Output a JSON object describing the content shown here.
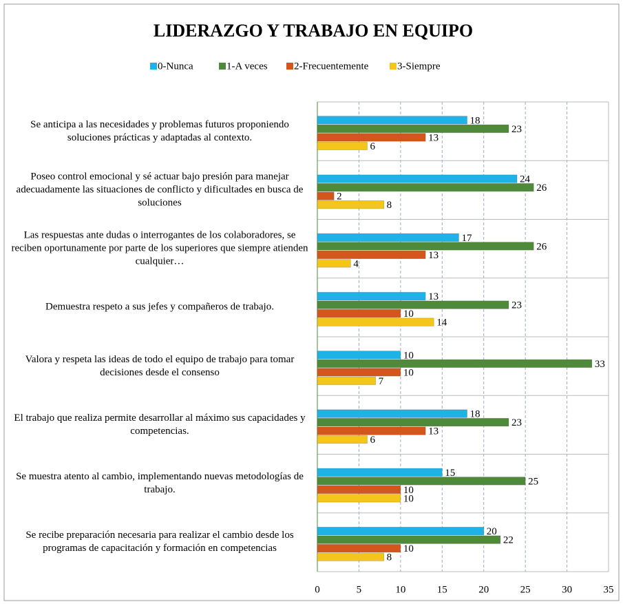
{
  "chart_data": {
    "type": "bar",
    "orientation": "horizontal",
    "title": "LIDERAZGO Y TRABAJO EN EQUIPO",
    "categories": [
      "Se anticipa a las necesidades y problemas futuros proponiendo soluciones prácticas y adaptadas al contexto.",
      "Poseo control emocional y sé actuar bajo presión para manejar adecuadamente las situaciones de conflicto y dificultades en busca de soluciones",
      "Las respuestas ante dudas o interrogantes de los colaboradores, se reciben oportunamente por parte de los superiores que siempre atienden cualquier…",
      "Demuestra respeto a sus jefes y compañeros de trabajo.",
      "Valora y respeta las ideas de todo el equipo de trabajo para tomar decisiones desde el consenso",
      "El trabajo que realiza permite desarrollar al máximo sus capacidades y competencias.",
      "Se muestra atento al cambio, implementando nuevas metodologías de trabajo.",
      "Se recibe preparación necesaria para realizar el cambio desde los programas de capacitación y formación en competencias"
    ],
    "series": [
      {
        "name": "0-Nunca",
        "color": "#1fb2e6",
        "values": [
          18,
          24,
          17,
          13,
          10,
          18,
          15,
          20
        ]
      },
      {
        "name": "1-A veces",
        "color": "#4f8a3b",
        "values": [
          23,
          26,
          26,
          23,
          33,
          23,
          25,
          22
        ]
      },
      {
        "name": "2-Frecuentemente",
        "color": "#d4561d",
        "values": [
          13,
          2,
          13,
          10,
          10,
          13,
          10,
          10
        ]
      },
      {
        "name": "3-Siempre",
        "color": "#f4c51b",
        "values": [
          6,
          8,
          4,
          14,
          7,
          6,
          10,
          8
        ]
      }
    ],
    "xlim": [
      0,
      35
    ],
    "xticks": [
      0,
      5,
      10,
      15,
      20,
      25,
      30,
      35
    ],
    "grid": true,
    "legend": "top"
  }
}
